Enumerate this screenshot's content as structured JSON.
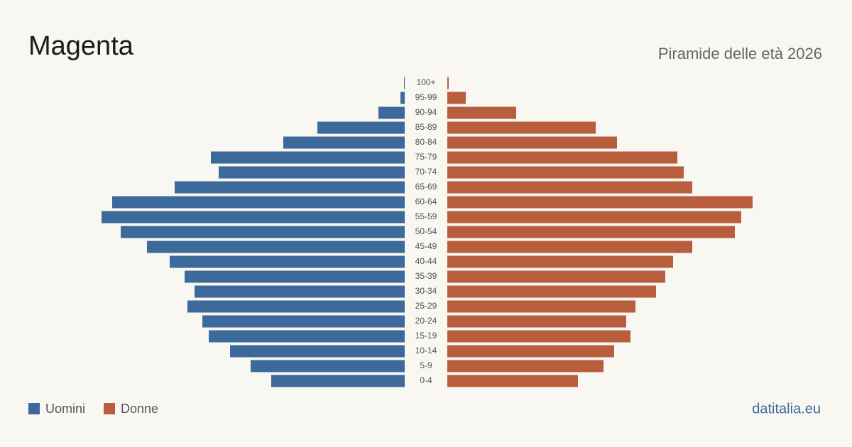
{
  "chart_data": {
    "type": "pyramid",
    "title": "Magenta",
    "subtitle": "Piramide delle età 2026",
    "source": "datitalia.eu",
    "categories": [
      "0-4",
      "5-9",
      "10-14",
      "15-19",
      "20-24",
      "25-29",
      "30-34",
      "35-39",
      "40-44",
      "45-49",
      "50-54",
      "55-59",
      "60-64",
      "65-69",
      "70-74",
      "75-79",
      "80-84",
      "85-89",
      "90-94",
      "95-99",
      "100+"
    ],
    "series": [
      {
        "name": "Uomini",
        "color": "#3b6a9b",
        "values": [
          188,
          217,
          246,
          276,
          285,
          306,
          296,
          310,
          331,
          363,
          400,
          427,
          412,
          324,
          262,
          273,
          171,
          123,
          37,
          6,
          1
        ]
      },
      {
        "name": "Donne",
        "color": "#b85e3c",
        "values": [
          184,
          220,
          235,
          258,
          252,
          265,
          294,
          307,
          318,
          345,
          405,
          414,
          430,
          345,
          333,
          324,
          239,
          209,
          97,
          26,
          2
        ]
      }
    ],
    "xlim": [
      0,
      430
    ]
  }
}
